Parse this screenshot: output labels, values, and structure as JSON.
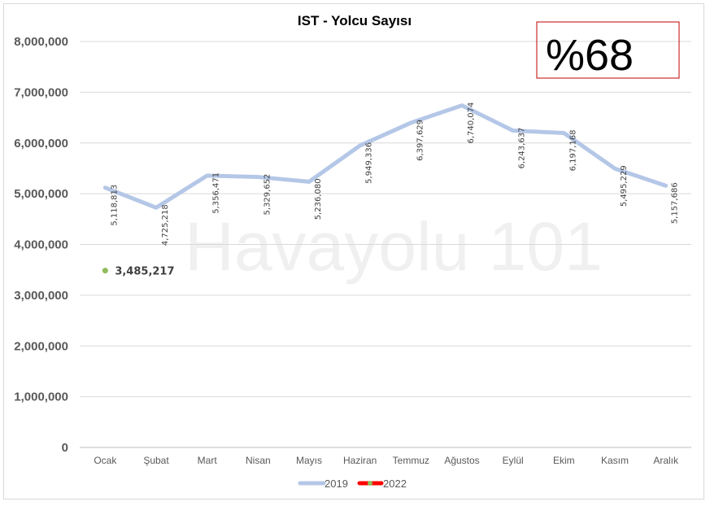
{
  "chart_data": {
    "type": "line",
    "title": "IST - Yolcu Sayısı",
    "categories": [
      "Ocak",
      "Şubat",
      "Mart",
      "Nisan",
      "Mayıs",
      "Haziran",
      "Temmuz",
      "Ağustos",
      "Eylül",
      "Ekim",
      "Kasım",
      "Aralık"
    ],
    "series": [
      {
        "name": "2019",
        "color": "#b4c7e7",
        "values": [
          5118813,
          4725218,
          5356471,
          5329652,
          5236080,
          5949336,
          6397629,
          6740074,
          6243637,
          6197168,
          5495229,
          5157686
        ],
        "labels": [
          "5,118,813",
          "4,725,218",
          "5,356,471",
          "5,329,652",
          "5,236,080",
          "5,949,336",
          "6,397,629",
          "6,740,074",
          "6,243,637",
          "6,197,168",
          "5,495,229",
          "5,157,686"
        ]
      },
      {
        "name": "2022",
        "color": "#ff0000",
        "marker_color": "#8fbc5a",
        "values": [
          3485217,
          null,
          null,
          null,
          null,
          null,
          null,
          null,
          null,
          null,
          null,
          null
        ],
        "labels": [
          "3,485,217"
        ]
      }
    ],
    "ylim": [
      0,
      8000000
    ],
    "yticks": [
      0,
      1000000,
      2000000,
      3000000,
      4000000,
      5000000,
      6000000,
      7000000,
      8000000
    ],
    "ytick_labels": [
      "0",
      "1,000,000",
      "2,000,000",
      "3,000,000",
      "4,000,000",
      "5,000,000",
      "6,000,000",
      "7,000,000",
      "8,000,000"
    ],
    "grid": true,
    "legend": "bottom"
  },
  "badge": {
    "text": "%68",
    "border_color": "#c00000"
  },
  "watermark": "Havayolu 101"
}
